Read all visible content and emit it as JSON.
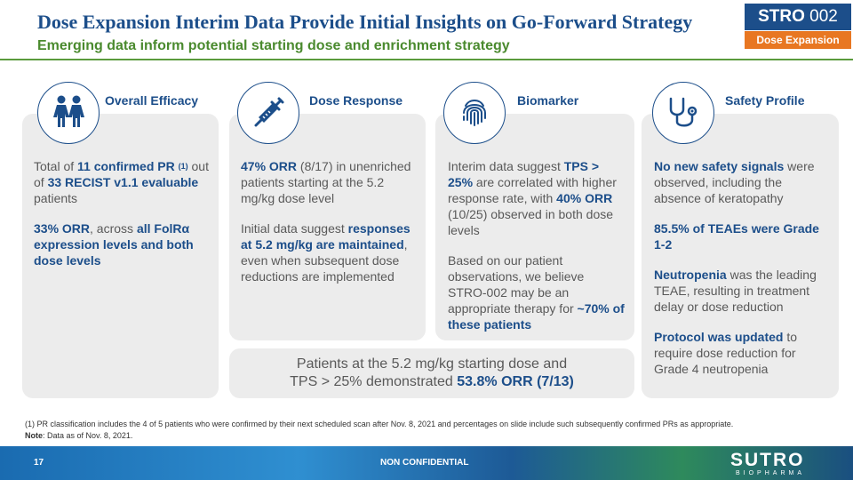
{
  "header": {
    "title": "Dose Expansion Interim Data Provide Initial Insights on Go-Forward Strategy",
    "subtitle": "Emerging data inform potential starting dose and enrichment strategy",
    "badge_bold": "STRO",
    "badge_num": "002",
    "badge_sub": "Dose Expansion"
  },
  "cards": [
    {
      "heading": "Overall Efficacy",
      "icon": "people-icon",
      "p1": {
        "a": "Total of ",
        "b": "11 confirmed PR",
        "sup": "(1)",
        "c": " out of ",
        "d": "33 RECIST v1.1 evaluable",
        "e": " patients"
      },
      "p2": {
        "a": "33% ORR",
        "b": ", across ",
        "c": "all FolRα expression levels and both dose levels"
      }
    },
    {
      "heading": "Dose Response",
      "icon": "syringe-icon",
      "p1": {
        "a": "47% ORR",
        "b": " (8/17) in unenriched patients starting at the 5.2 mg/kg dose level"
      },
      "p2": {
        "a": "Initial data suggest ",
        "b": "responses at 5.2 mg/kg are maintained",
        "c": ", even when subsequent dose reductions are implemented"
      }
    },
    {
      "heading": "Biomarker",
      "icon": "fingerprint-icon",
      "p1": {
        "a": "Interim data suggest ",
        "b": "TPS > 25%",
        "c": " are correlated with higher response rate, with ",
        "d": "40% ORR",
        "e": " (10/25) observed in both dose levels"
      },
      "p2": {
        "a": "Based on our patient observations, we believe STRO-002 may be an appropriate therapy for ",
        "b": "~70% of these patients"
      }
    },
    {
      "heading": "Safety Profile",
      "icon": "stethoscope-icon",
      "p1": {
        "a": "No new safety signals",
        "b": " were observed, including the absence of keratopathy"
      },
      "p2": {
        "a": "85.5% of TEAEs were Grade 1-2"
      },
      "p3": {
        "a": "Neutropenia",
        "b": " was the leading TEAE, resulting in treatment delay or dose reduction"
      },
      "p4": {
        "a": "Protocol was updated",
        "b": " to require dose reduction for Grade 4 neutropenia"
      }
    }
  ],
  "callout": {
    "line1": "Patients at the 5.2 mg/kg starting dose and",
    "line2": "TPS > 25% demonstrated ",
    "highlight": "53.8% ORR (7/13)"
  },
  "footnote": {
    "line1": "(1) PR classification includes the 4 of 5 patients who were confirmed by their next scheduled scan after Nov. 8, 2021 and percentages on slide include such subsequently confirmed PRs as appropriate.",
    "note_label": "Note",
    "note_text": ": Data as of Nov. 8, 2021."
  },
  "footer": {
    "page": "17",
    "confidential": "NON CONFIDENTIAL",
    "logo": "SUTRO",
    "logo_sub": "BIOPHARMA"
  },
  "colors": {
    "brand_blue": "#1c4e8a",
    "green": "#4a8a2e",
    "orange": "#e87722",
    "card_gray": "#ececec"
  }
}
